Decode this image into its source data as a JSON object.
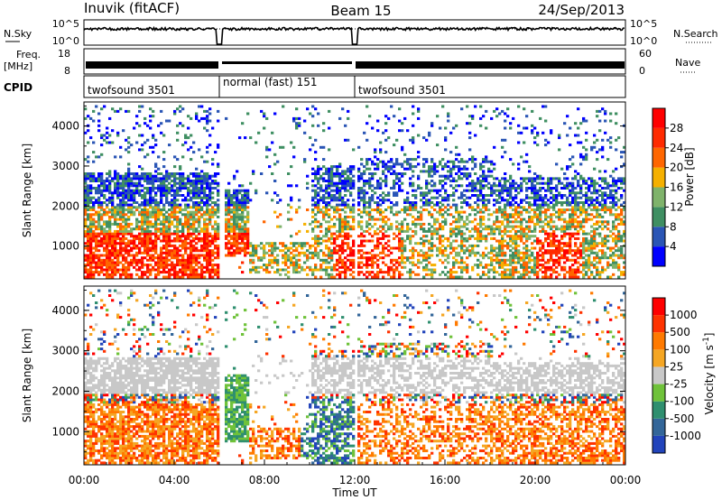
{
  "header": {
    "station": "Inuvik (fitACF)",
    "beam": "Beam 15",
    "date": "24/Sep/2013"
  },
  "nsky_panel": {
    "left_label": "N.Sky",
    "left_ticks": [
      "10^5",
      "10^0"
    ],
    "right_label": "N.Search",
    "right_ticks": [
      "10^5",
      "10^0"
    ]
  },
  "freq_panel": {
    "left_label_1": "Freq.",
    "left_label_2": "[MHz]",
    "left_ticks": [
      "18",
      "8"
    ],
    "right_label": "Nave",
    "right_ticks": [
      "60",
      "0"
    ]
  },
  "cpid_panel": {
    "label": "CPID",
    "segments": [
      {
        "name": "twofsound 3501",
        "start_h": 0,
        "end_h": 6
      },
      {
        "name": "normal (fast) 151",
        "start_h": 6,
        "end_h": 12
      },
      {
        "name": "twofsound 3501",
        "start_h": 12,
        "end_h": 24
      }
    ]
  },
  "chart_data": [
    {
      "type": "heatmap",
      "ylabel": "Slant Range [km]",
      "y_ticks": [
        "4000",
        "3000",
        "2000",
        "1000"
      ],
      "ylim": [
        180,
        4600
      ],
      "colorbar": {
        "label": "Power [dB]",
        "ticks": [
          "28",
          "24",
          "20",
          "16",
          "12",
          "8",
          "4"
        ],
        "colors": [
          "#0000ff",
          "#2a55b5",
          "#3f8f62",
          "#7fb36b",
          "#f5b000",
          "#ff6600",
          "#ff2a00",
          "#ff0000"
        ]
      }
    },
    {
      "type": "heatmap",
      "ylabel": "Slant Range [km]",
      "y_ticks": [
        "4000",
        "3000",
        "2000",
        "1000"
      ],
      "ylim": [
        180,
        4600
      ],
      "colorbar": {
        "label": "Velocity [m s^-1]",
        "ticks": [
          "1000",
          "500",
          "100",
          "25",
          "-25",
          "-100",
          "-500",
          "-1000"
        ],
        "colors": [
          "#2244bb",
          "#336699",
          "#2f8f6f",
          "#6fc23a",
          "#c8c8c8",
          "#f5a623",
          "#ff7a00",
          "#ff3300",
          "#ff0000"
        ]
      }
    }
  ],
  "x_axis": {
    "ticks": [
      "00:00",
      "04:00",
      "08:00",
      "12:00",
      "16:00",
      "20:00",
      "00:00"
    ],
    "label": "Time UT"
  }
}
